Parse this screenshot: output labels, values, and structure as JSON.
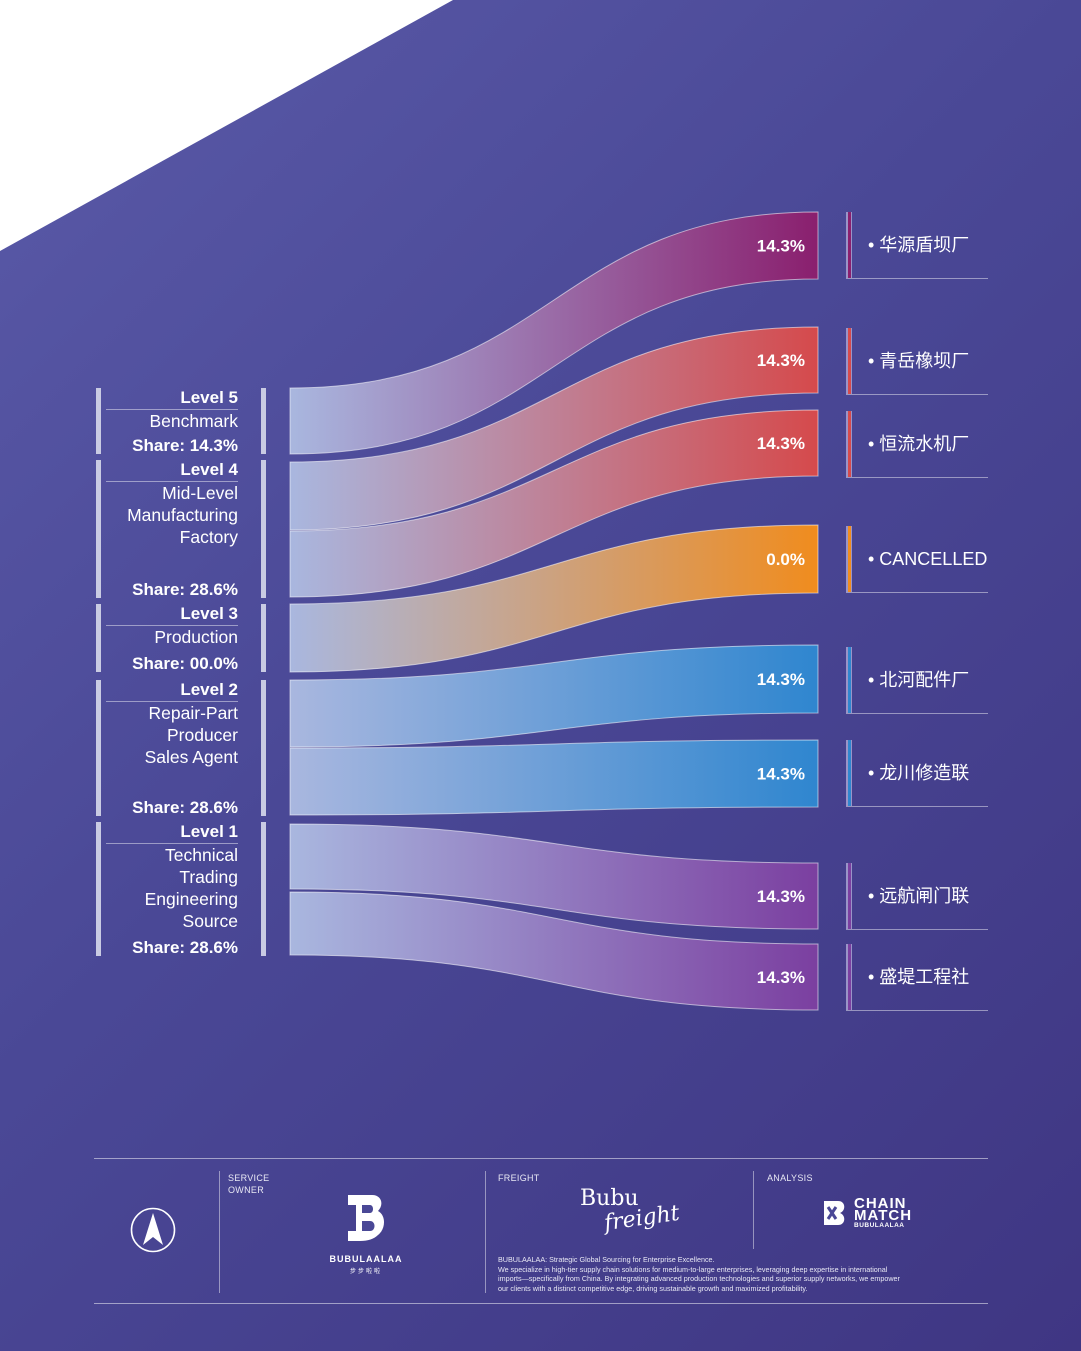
{
  "chart_data": {
    "type": "sankey",
    "title": "",
    "levels": [
      {
        "title": "Level 5",
        "lines": [
          "Benchmark"
        ],
        "share_label": "Share: 14.3%",
        "share": 14.3
      },
      {
        "title": "Level 4",
        "lines": [
          "Mid-Level",
          "Manufacturing",
          "Factory"
        ],
        "share_label": "Share: 28.6%",
        "share": 28.6
      },
      {
        "title": "Level 3",
        "lines": [
          "Production"
        ],
        "share_label": "Share: 00.0%",
        "share": 0.0
      },
      {
        "title": "Level 2",
        "lines": [
          "Repair-Part",
          "Producer",
          "Sales Agent"
        ],
        "share_label": "Share: 28.6%",
        "share": 28.6
      },
      {
        "title": "Level 1",
        "lines": [
          "Technical",
          "Trading",
          "Engineering",
          "Source"
        ],
        "share_label": "Share: 28.6%",
        "share": 28.6
      }
    ],
    "destinations": [
      {
        "label": "• 华源盾坝厂",
        "value": 14.3,
        "value_label": "14.3%",
        "level": "Level 5",
        "color": "#8a1f6e"
      },
      {
        "label": "• 青岳橡坝厂",
        "value": 14.3,
        "value_label": "14.3%",
        "level": "Level 4",
        "color": "#d54a4c"
      },
      {
        "label": "• 恒流水机厂",
        "value": 14.3,
        "value_label": "14.3%",
        "level": "Level 4",
        "color": "#d54a4c"
      },
      {
        "label": "• CANCELLED",
        "value": 0.0,
        "value_label": "0.0%",
        "level": "Level 3",
        "color": "#f08c1e"
      },
      {
        "label": "• 北河配件厂",
        "value": 14.3,
        "value_label": "14.3%",
        "level": "Level 2",
        "color": "#2f86cf"
      },
      {
        "label": "• 龙川修造联",
        "value": 14.3,
        "value_label": "14.3%",
        "level": "Level 2",
        "color": "#2f86cf"
      },
      {
        "label": "• 远航闸门联",
        "value": 14.3,
        "value_label": "14.3%",
        "level": "Level 1",
        "color": "#7b3fa0"
      },
      {
        "label": "• 盛堤工程社",
        "value": 14.3,
        "value_label": "14.3%",
        "level": "Level 1",
        "color": "#7b3fa0"
      }
    ]
  },
  "colors": {
    "flow_start": "#a9b7df",
    "background": "#4a4896"
  },
  "footer": {
    "service_owner_caption_1": "SERVICE",
    "service_owner_caption_2": "OWNER",
    "owner_wordmark": "BUBULAALAA",
    "owner_cn_mark": "步步啦啦",
    "freight_caption": "FREIGHT",
    "freight_logo_top": "Bubu",
    "freight_logo_bottom": "freight",
    "analysis_caption": "ANALYSIS",
    "analysis_logo_line1": "CHAIN",
    "analysis_logo_line2": "MATCH",
    "analysis_logo_sub": "BUBULAALAA",
    "blurb_lines": [
      "BUBULAALAA: Strategic Global Sourcing for Enterprise Excellence.",
      "We specialize in high-tier supply chain solutions for medium-to-large enterprises, leveraging deep expertise in international",
      "imports—specifically from China. By integrating advanced production technologies and superior supply networks, we empower",
      "our clients with a distinct competitive edge, driving sustainable growth and maximized profitability."
    ]
  }
}
